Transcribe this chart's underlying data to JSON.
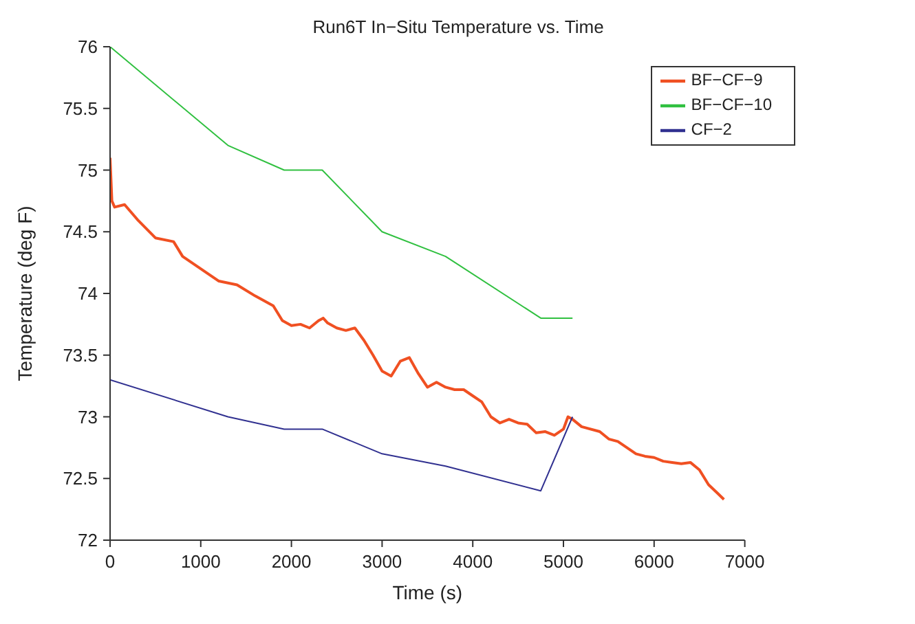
{
  "chart_data": {
    "type": "line",
    "title": "Run6T In−Situ Temperature vs. Time",
    "xlabel": "Time (s)",
    "ylabel": "Temperature (deg F)",
    "xlim": [
      0,
      7000
    ],
    "xticks": [
      0,
      1000,
      2000,
      3000,
      4000,
      5000,
      6000,
      7000
    ],
    "ylim": [
      72,
      76
    ],
    "yticks": [
      72,
      72.5,
      73,
      73.5,
      74,
      74.5,
      75,
      75.5,
      76
    ],
    "legend": "top right",
    "marker": "none",
    "line_style": "solid",
    "series": [
      {
        "name": "BF−CF−9",
        "color": "#f05022",
        "x": [
          0,
          20,
          50,
          160,
          300,
          500,
          700,
          800,
          1000,
          1200,
          1400,
          1600,
          1800,
          1900,
          2000,
          2100,
          2200,
          2300,
          2350,
          2400,
          2500,
          2600,
          2700,
          2800,
          2900,
          3000,
          3100,
          3200,
          3300,
          3400,
          3500,
          3600,
          3700,
          3800,
          3900,
          4000,
          4100,
          4200,
          4300,
          4400,
          4500,
          4600,
          4700,
          4800,
          4900,
          5000,
          5050,
          5100,
          5200,
          5400,
          5500,
          5600,
          5700,
          5800,
          5900,
          6000,
          6100,
          6200,
          6300,
          6400,
          6500,
          6600,
          6700,
          6770
        ],
        "values": [
          75.1,
          74.75,
          74.7,
          74.72,
          74.6,
          74.45,
          74.42,
          74.3,
          74.2,
          74.1,
          74.07,
          73.98,
          73.9,
          73.78,
          73.74,
          73.75,
          73.72,
          73.78,
          73.8,
          73.76,
          73.72,
          73.7,
          73.72,
          73.62,
          73.5,
          73.37,
          73.33,
          73.45,
          73.48,
          73.35,
          73.24,
          73.28,
          73.24,
          73.22,
          73.22,
          73.17,
          73.12,
          73.0,
          72.95,
          72.98,
          72.95,
          72.94,
          72.87,
          72.88,
          72.85,
          72.9,
          73.0,
          72.98,
          72.92,
          72.88,
          72.82,
          72.8,
          72.75,
          72.7,
          72.68,
          72.67,
          72.64,
          72.63,
          72.62,
          72.63,
          72.57,
          72.45,
          72.38,
          72.33
        ]
      },
      {
        "name": "BF−CF−10",
        "color": "#30c040",
        "x": [
          0,
          1300,
          1920,
          2340,
          3000,
          3700,
          4750,
          5100
        ],
        "values": [
          76,
          75.2,
          75.0,
          75.0,
          74.5,
          74.3,
          73.8,
          73.8
        ]
      },
      {
        "name": "CF−2",
        "color": "#303090",
        "x": [
          0,
          1300,
          1920,
          2340,
          3000,
          3700,
          4750,
          5100
        ],
        "values": [
          73.3,
          73.0,
          72.9,
          72.9,
          72.7,
          72.6,
          72.4,
          73.0
        ]
      }
    ]
  }
}
